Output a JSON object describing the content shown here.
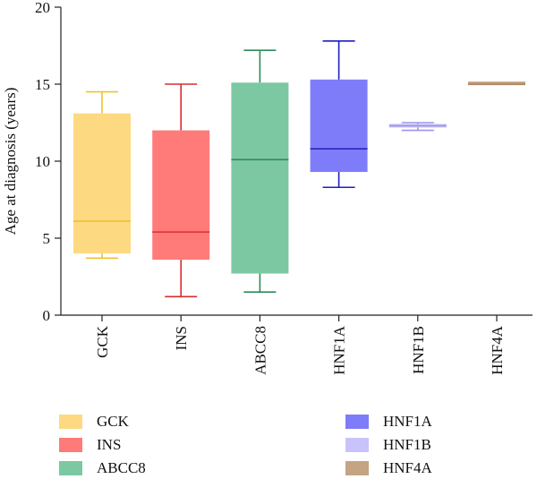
{
  "chart_data": {
    "type": "boxplot",
    "ylabel": "Age at diagnosis (years)",
    "xlabel": "",
    "ylim": [
      0,
      20
    ],
    "yticks": [
      0,
      5,
      10,
      15,
      20
    ],
    "grid": false,
    "legend_position": "bottom",
    "categories": [
      "GCK",
      "INS",
      "ABCC8",
      "HNF1A",
      "HNF1B",
      "HNF4A"
    ],
    "series": [
      {
        "name": "GCK",
        "fill": "#fdd981",
        "stroke": "#f0c12c",
        "min": 3.7,
        "q1": 4.0,
        "median": 6.1,
        "q3": 13.1,
        "max": 14.5
      },
      {
        "name": "INS",
        "fill": "#fe7b79",
        "stroke": "#d62f2f",
        "min": 1.2,
        "q1": 3.6,
        "median": 5.4,
        "q3": 12.0,
        "max": 15.0
      },
      {
        "name": "ABCC8",
        "fill": "#7cc8a2",
        "stroke": "#2e8b57",
        "min": 1.5,
        "q1": 2.7,
        "median": 10.1,
        "q3": 15.1,
        "max": 17.2
      },
      {
        "name": "HNF1A",
        "fill": "#7f7cfa",
        "stroke": "#1f1fbf",
        "min": 8.3,
        "q1": 9.3,
        "median": 10.8,
        "q3": 15.3,
        "max": 17.8
      },
      {
        "name": "HNF1B",
        "fill": "#c8c3fb",
        "stroke": "#9b95e8",
        "min": 12.0,
        "q1": 12.2,
        "median": 12.3,
        "q3": 12.4,
        "max": 12.5
      },
      {
        "name": "HNF4A",
        "fill": "#c5a483",
        "stroke": "#a88462",
        "min": 15.0,
        "q1": 15.0,
        "median": 15.0,
        "q3": 15.1,
        "max": 15.1
      }
    ]
  }
}
